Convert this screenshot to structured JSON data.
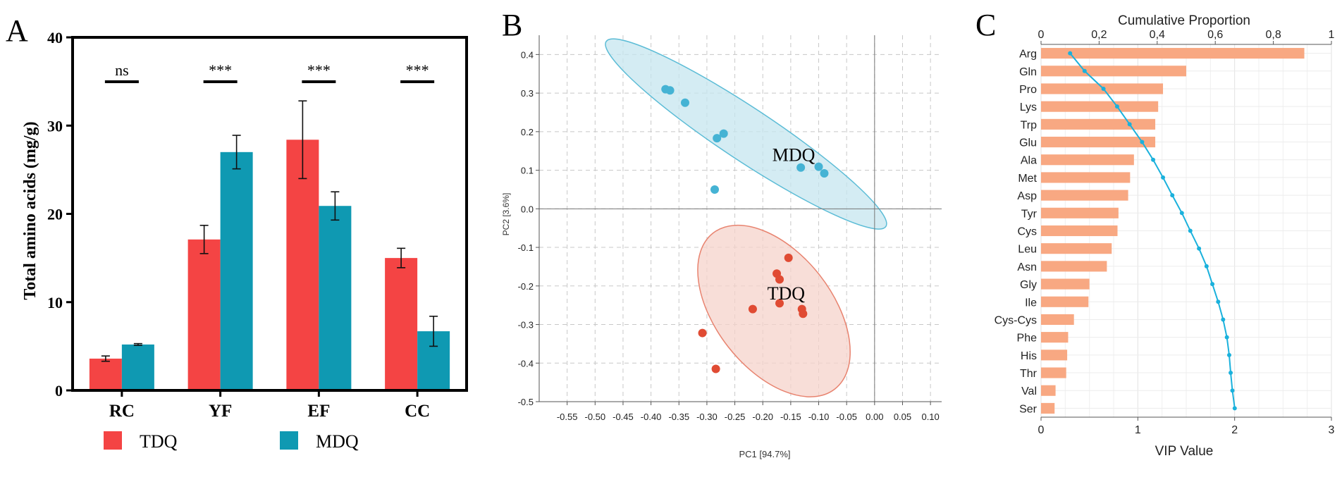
{
  "colors": {
    "tdq": "#f44444",
    "mdq": "#0f99b2",
    "pca_mdq_point": "#45b3d4",
    "pca_mdq_ellipse_fill": "#c6e6ef",
    "pca_mdq_ellipse_stroke": "#5bbcd6",
    "pca_tdq_point": "#e04b33",
    "pca_tdq_ellipse_fill": "#f6d3cb",
    "pca_tdq_ellipse_stroke": "#e8836f",
    "vip_bar": "#f8a882",
    "cum_line": "#1ab1dc"
  },
  "chart_data": [
    {
      "panel_label": "A",
      "type": "bar",
      "ylabel": "Total amino acids (mg/g)",
      "ylim": [
        0,
        40
      ],
      "yticks": [
        "0",
        "10",
        "20",
        "30",
        "40"
      ],
      "categories": [
        "RC",
        "YF",
        "EF",
        "CC"
      ],
      "series": [
        {
          "name": "TDQ",
          "values": [
            3.6,
            17.1,
            28.4,
            15.0
          ],
          "errors": [
            0.3,
            1.6,
            4.4,
            1.1
          ]
        },
        {
          "name": "MDQ",
          "values": [
            5.2,
            27.0,
            20.9,
            6.7
          ],
          "errors": [
            0.1,
            1.9,
            1.6,
            1.7
          ]
        }
      ],
      "significance": [
        "ns",
        "***",
        "***",
        "***"
      ],
      "legend_position": "bottom"
    },
    {
      "panel_label": "B",
      "type": "scatter",
      "xlabel": "PC1 [94.7%]",
      "ylabel": "PC2 [3.6%]",
      "xlim": [
        -0.6,
        0.12
      ],
      "ylim": [
        -0.5,
        0.45
      ],
      "xticks": [
        "-0.55",
        "-0.50",
        "-0.45",
        "-0.40",
        "-0.35",
        "-0.30",
        "-0.25",
        "-0.20",
        "-0.15",
        "-0.10",
        "-0.05",
        "0.00",
        "0.05",
        "0.10"
      ],
      "yticks": [
        "0.4",
        "0.3",
        "0.2",
        "0.1",
        "0.0",
        "-0.1",
        "-0.2",
        "-0.3",
        "-0.4",
        "-0.5"
      ],
      "grid": true,
      "series": [
        {
          "name": "MDQ",
          "points": [
            [
              -0.374,
              0.31
            ],
            [
              -0.366,
              0.307
            ],
            [
              -0.339,
              0.275
            ],
            [
              -0.282,
              0.183
            ],
            [
              -0.27,
              0.195
            ],
            [
              -0.286,
              0.05
            ],
            [
              -0.132,
              0.107
            ],
            [
              -0.1,
              0.109
            ],
            [
              -0.09,
              0.092
            ]
          ],
          "ellipse": {
            "center": [
              -0.23,
              0.194
            ],
            "rx": 0.3,
            "ry": 0.047,
            "angle": 33.5
          }
        },
        {
          "name": "TDQ",
          "points": [
            [
              -0.154,
              -0.127
            ],
            [
              -0.175,
              -0.168
            ],
            [
              -0.17,
              -0.183
            ],
            [
              -0.17,
              -0.245
            ],
            [
              -0.218,
              -0.26
            ],
            [
              -0.13,
              -0.26
            ],
            [
              -0.128,
              -0.272
            ],
            [
              -0.308,
              -0.322
            ],
            [
              -0.284,
              -0.415
            ]
          ],
          "ellipse": {
            "center": [
              -0.18,
              -0.265
            ],
            "rx": 0.177,
            "ry": 0.104,
            "angle": 52
          }
        }
      ],
      "annotations": [
        "MDQ",
        "TDQ"
      ]
    },
    {
      "panel_label": "C",
      "type": "bar",
      "orientation": "horizontal",
      "xlabel": "VIP Value",
      "top_xlabel": "Cumulative Proportion",
      "xlim": [
        0,
        3
      ],
      "xticks": [
        "0",
        "1",
        "2",
        "3"
      ],
      "top_xlim": [
        0,
        1
      ],
      "top_xticks": [
        "0",
        "0,2",
        "0,4",
        "0,6",
        "0,8",
        "1"
      ],
      "categories": [
        "Arg",
        "Gln",
        "Pro",
        "Lys",
        "Trp",
        "Glu",
        "Ala",
        "Met",
        "Asp",
        "Tyr",
        "Cys",
        "Leu",
        "Asn",
        "Gly",
        "Ile",
        "Cys-Cys",
        "Phe",
        "His",
        "Thr",
        "Val",
        "Ser"
      ],
      "vip_values": [
        2.72,
        1.5,
        1.26,
        1.21,
        1.18,
        1.18,
        0.96,
        0.92,
        0.9,
        0.8,
        0.79,
        0.73,
        0.68,
        0.5,
        0.49,
        0.34,
        0.28,
        0.27,
        0.26,
        0.15,
        0.14
      ],
      "cumulative_proportion": [
        0.1,
        0.15,
        0.215,
        0.262,
        0.305,
        0.348,
        0.386,
        0.42,
        0.452,
        0.485,
        0.514,
        0.544,
        0.57,
        0.59,
        0.61,
        0.627,
        0.64,
        0.648,
        0.653,
        0.659,
        0.667
      ]
    }
  ]
}
